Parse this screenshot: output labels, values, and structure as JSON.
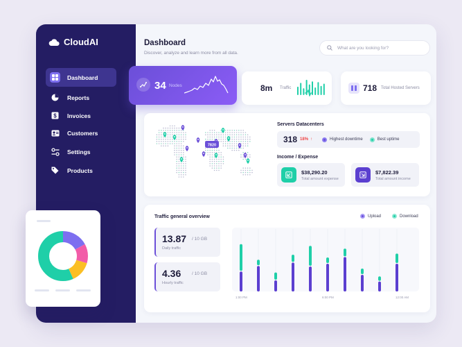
{
  "app": {
    "name": "CloudAI"
  },
  "sidebar": {
    "items": [
      {
        "label": "Dashboard",
        "icon": "dashboard-icon",
        "active": true
      },
      {
        "label": "Reports",
        "icon": "pie-chart-icon"
      },
      {
        "label": "Invoices",
        "icon": "invoice-icon"
      },
      {
        "label": "Customers",
        "icon": "customers-icon"
      },
      {
        "label": "Settings",
        "icon": "settings-icon"
      },
      {
        "label": "Products",
        "icon": "tag-icon"
      }
    ]
  },
  "header": {
    "title": "Dashboard",
    "subtitle": "Discover, analyze and learn more from all data.",
    "search_placeholder": "What are you looking for?"
  },
  "stats": {
    "nodes": {
      "value": "34",
      "label": "Nodes"
    },
    "traffic": {
      "value": "8m",
      "label": "Traffic",
      "bars": [
        0.55,
        0.8,
        0.45,
        1.0,
        0.7,
        0.9,
        0.5,
        0.85,
        0.6,
        0.75
      ]
    },
    "hosted": {
      "value": "718",
      "label": "Total Hosted Servers"
    }
  },
  "servers": {
    "title": "Servers Datacenters",
    "map_tooltip": "7820",
    "count": "318",
    "change": "18%",
    "legend_downtime": "Highest downtime",
    "legend_uptime": "Best uptime"
  },
  "income": {
    "title": "Income / Expense",
    "expense_value": "$38,290.20",
    "expense_label": "Total amount expense",
    "income_value": "$7,822.39",
    "income_label": "Total amount income"
  },
  "traffic_overview": {
    "title": "Traffic general overview",
    "legend_upload": "Upload",
    "legend_download": "Download",
    "daily": {
      "value": "13.87",
      "unit": "/ 10 GB",
      "label": "Daily traffic"
    },
    "hourly": {
      "value": "4.36",
      "unit": "/ 10 GB",
      "label": "Hourly traffic"
    },
    "x_ticks": [
      "1:00 PM",
      "6:00 PM",
      "12:00 AM"
    ],
    "bars": [
      {
        "download": 0.48,
        "upload": 0.36
      },
      {
        "download": 0.1,
        "upload": 0.46
      },
      {
        "download": 0.13,
        "upload": 0.2
      },
      {
        "download": 0.13,
        "upload": 0.52
      },
      {
        "download": 0.36,
        "upload": 0.45
      },
      {
        "download": 0.1,
        "upload": 0.5
      },
      {
        "download": 0.14,
        "upload": 0.62
      },
      {
        "download": 0.1,
        "upload": 0.3
      },
      {
        "download": 0.08,
        "upload": 0.18
      },
      {
        "download": 0.17,
        "upload": 0.5
      }
    ]
  },
  "colors": {
    "sidebar": "#241d63",
    "accent_purple": "#6b4fd8",
    "teal": "#1fcfa8",
    "pink": "#f25ca8",
    "yellow": "#fbbf24"
  }
}
